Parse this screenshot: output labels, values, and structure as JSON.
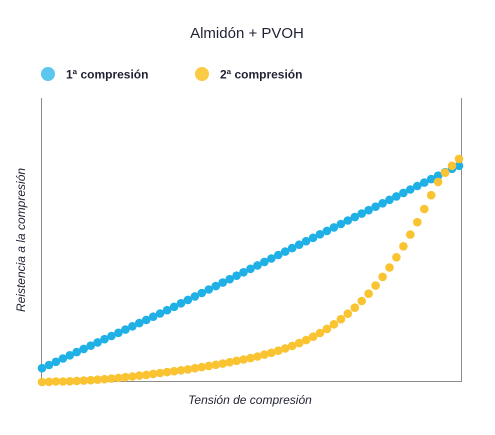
{
  "chart_data": {
    "type": "scatter",
    "title": "Almidón + PVOH",
    "xlabel": "Tensión de compresión",
    "ylabel": "Reistencia a la compresión",
    "xlim": [
      0,
      1
    ],
    "ylim": [
      0,
      1
    ],
    "grid": false,
    "legend_position": "top-left",
    "series": [
      {
        "name": "1ª compresión",
        "color": "#1fb0e6",
        "legend_color": "#5bc6ee",
        "x": [
          0.0,
          0.0167,
          0.0333,
          0.05,
          0.0667,
          0.0833,
          0.1,
          0.1167,
          0.1333,
          0.15,
          0.1667,
          0.1833,
          0.2,
          0.2167,
          0.2333,
          0.25,
          0.2667,
          0.2833,
          0.3,
          0.3167,
          0.3333,
          0.35,
          0.3667,
          0.3833,
          0.4,
          0.4167,
          0.4333,
          0.45,
          0.4667,
          0.4833,
          0.5,
          0.5167,
          0.5333,
          0.55,
          0.5667,
          0.5833,
          0.6,
          0.6167,
          0.6333,
          0.65,
          0.6667,
          0.6833,
          0.7,
          0.7167,
          0.7333,
          0.75,
          0.7667,
          0.7833,
          0.8,
          0.8167,
          0.8333,
          0.85,
          0.8667,
          0.8833,
          0.9,
          0.9167,
          0.9333,
          0.95,
          0.9667,
          0.9833,
          1.0
        ],
        "y": [
          0.06,
          0.074,
          0.088,
          0.102,
          0.116,
          0.13,
          0.144,
          0.158,
          0.172,
          0.186,
          0.2,
          0.214,
          0.228,
          0.242,
          0.256,
          0.27,
          0.284,
          0.298,
          0.312,
          0.327,
          0.342,
          0.357,
          0.372,
          0.387,
          0.402,
          0.417,
          0.432,
          0.447,
          0.462,
          0.477,
          0.492,
          0.507,
          0.522,
          0.537,
          0.552,
          0.567,
          0.582,
          0.597,
          0.612,
          0.627,
          0.642,
          0.657,
          0.672,
          0.687,
          0.702,
          0.717,
          0.732,
          0.747,
          0.762,
          0.777,
          0.792,
          0.807,
          0.822,
          0.837,
          0.852,
          0.867,
          0.882,
          0.897,
          0.912,
          0.927,
          0.94
        ]
      },
      {
        "name": "2ª compresión",
        "color": "#f9c332",
        "legend_color": "#fbcb45",
        "x": [
          0.0,
          0.0167,
          0.0333,
          0.05,
          0.0667,
          0.0833,
          0.1,
          0.1167,
          0.1333,
          0.15,
          0.1667,
          0.1833,
          0.2,
          0.2167,
          0.2333,
          0.25,
          0.2667,
          0.2833,
          0.3,
          0.3167,
          0.3333,
          0.35,
          0.3667,
          0.3833,
          0.4,
          0.4167,
          0.4333,
          0.45,
          0.4667,
          0.4833,
          0.5,
          0.5167,
          0.5333,
          0.55,
          0.5667,
          0.5833,
          0.6,
          0.6167,
          0.6333,
          0.65,
          0.6667,
          0.6833,
          0.7,
          0.7167,
          0.7333,
          0.75,
          0.7667,
          0.7833,
          0.8,
          0.8167,
          0.8333,
          0.85,
          0.8667,
          0.8833,
          0.9,
          0.9167,
          0.9333,
          0.95,
          0.9667,
          0.9833,
          1.0
        ],
        "y": [
          0.0,
          0.001,
          0.002,
          0.002,
          0.003,
          0.005,
          0.006,
          0.008,
          0.01,
          0.012,
          0.015,
          0.018,
          0.021,
          0.024,
          0.028,
          0.031,
          0.035,
          0.039,
          0.043,
          0.047,
          0.051,
          0.055,
          0.06,
          0.065,
          0.07,
          0.075,
          0.08,
          0.086,
          0.092,
          0.098,
          0.104,
          0.111,
          0.119,
          0.127,
          0.136,
          0.146,
          0.157,
          0.169,
          0.182,
          0.197,
          0.213,
          0.231,
          0.251,
          0.273,
          0.297,
          0.323,
          0.352,
          0.384,
          0.419,
          0.457,
          0.498,
          0.542,
          0.59,
          0.641,
          0.695,
          0.752,
          0.812,
          0.87,
          0.91,
          0.94,
          0.97
        ]
      }
    ]
  }
}
